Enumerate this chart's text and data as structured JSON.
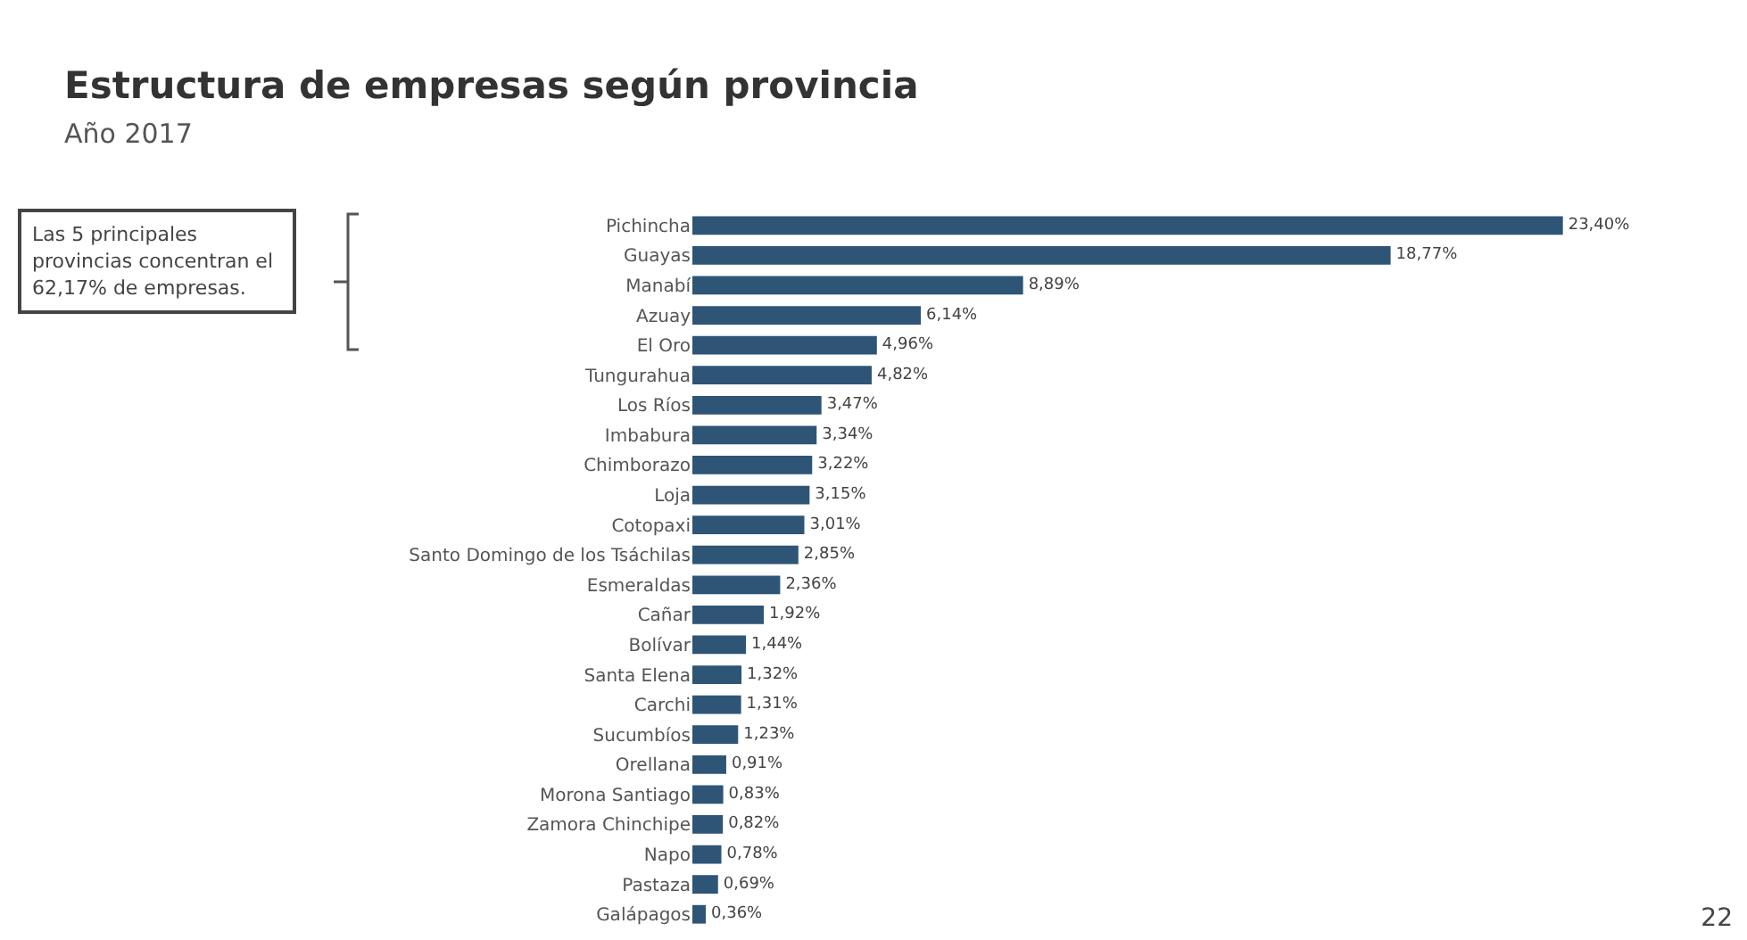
{
  "chart_data": {
    "type": "bar",
    "orientation": "horizontal",
    "title": "Estructura de empresas según provincia",
    "subtitle": "Año 2017",
    "categories": [
      "Pichincha",
      "Guayas",
      "Manabí",
      "Azuay",
      "El Oro",
      "Tungurahua",
      "Los Ríos",
      "Imbabura",
      "Chimborazo",
      "Loja",
      "Cotopaxi",
      "Santo Domingo de los Tsáchilas",
      "Esmeraldas",
      "Cañar",
      "Bolívar",
      "Santa Elena",
      "Carchi",
      "Sucumbíos",
      "Orellana",
      "Morona Santiago",
      "Zamora Chinchipe",
      "Napo",
      "Pastaza",
      "Galápagos"
    ],
    "values": [
      23.4,
      18.77,
      8.89,
      6.14,
      4.96,
      4.82,
      3.47,
      3.34,
      3.22,
      3.15,
      3.01,
      2.85,
      2.36,
      1.92,
      1.44,
      1.32,
      1.31,
      1.23,
      0.91,
      0.83,
      0.82,
      0.78,
      0.69,
      0.36
    ],
    "value_labels": [
      "23,40%",
      "18,77%",
      "8,89%",
      "6,14%",
      "4,96%",
      "4,82%",
      "3,47%",
      "3,34%",
      "3,22%",
      "3,15%",
      "3,01%",
      "2,85%",
      "2,36%",
      "1,92%",
      "1,44%",
      "1,32%",
      "1,31%",
      "1,23%",
      "0,91%",
      "0,83%",
      "0,82%",
      "0,78%",
      "0,69%",
      "0,36%"
    ],
    "color": "#2e5576",
    "annotations": [
      "Las 5 principales provincias concentran el 62,17% de empresas.",
      "22"
    ],
    "legend": false
  }
}
